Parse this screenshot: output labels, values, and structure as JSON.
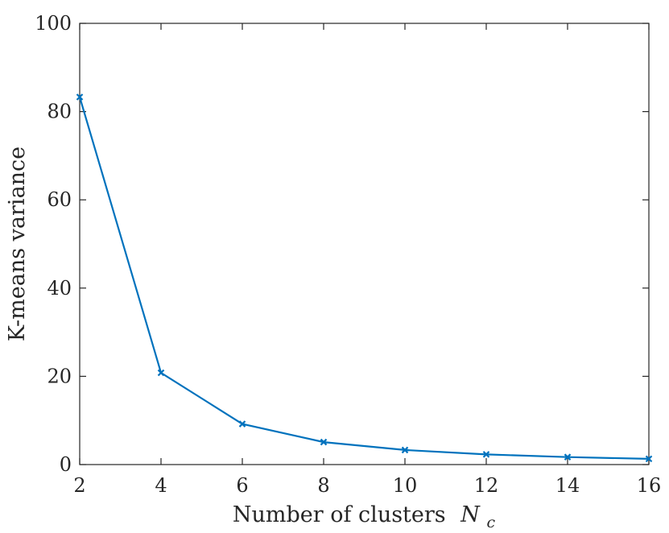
{
  "chart_data": {
    "type": "line",
    "xlabel": "Number of clusters",
    "xlabel_symbol": "N",
    "xlabel_subscript": "c",
    "ylabel": "K-means variance",
    "xlim": [
      2,
      16
    ],
    "ylim": [
      0,
      100
    ],
    "x_ticks": [
      2,
      4,
      6,
      8,
      10,
      12,
      14,
      16
    ],
    "y_ticks": [
      0,
      20,
      40,
      60,
      80,
      100
    ],
    "grid": false,
    "box": true,
    "series": [
      {
        "x": [
          2,
          4,
          6,
          8,
          10,
          12,
          14,
          16
        ],
        "y": [
          83.3,
          20.8,
          9.2,
          5.1,
          3.3,
          2.3,
          1.7,
          1.3
        ],
        "color": "#0072BD",
        "marker": "x"
      }
    ]
  }
}
